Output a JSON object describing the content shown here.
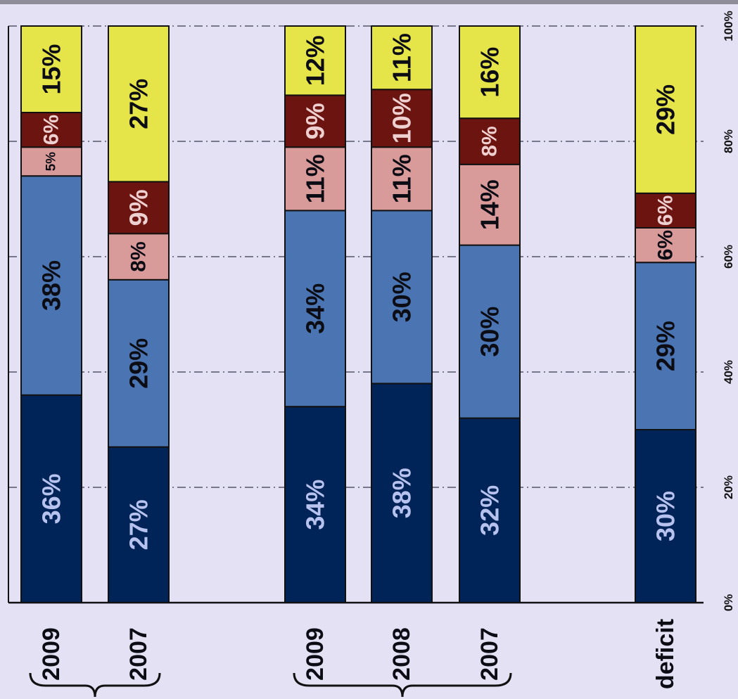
{
  "chart_data": {
    "type": "bar",
    "orientation": "horizontal-stacked",
    "value_axis": {
      "range": [
        0,
        100
      ],
      "ticks": [
        "0%",
        "20%",
        "40%",
        "60%",
        "80%",
        "100%"
      ],
      "grid": true
    },
    "categories": [
      "2009",
      "2007",
      "2009",
      "2008",
      "2007",
      "deficit"
    ],
    "category_groups": [
      {
        "members": [
          0,
          1
        ]
      },
      {
        "members": [
          2,
          3,
          4
        ]
      },
      {
        "members": [
          5
        ]
      }
    ],
    "series": [
      {
        "color": "#002457",
        "label_color": "#b7c3ee",
        "values": [
          36,
          27,
          34,
          38,
          32,
          30
        ]
      },
      {
        "color": "#4b75b2",
        "label_color": "#0c0c14",
        "values": [
          38,
          29,
          34,
          30,
          30,
          29
        ]
      },
      {
        "color": "#d99a9a",
        "label_color": "#0c0c14",
        "values": [
          5,
          8,
          11,
          11,
          14,
          6
        ]
      },
      {
        "color": "#6b1410",
        "label_color": "#efd0d0",
        "values": [
          6,
          9,
          9,
          10,
          8,
          6
        ]
      },
      {
        "color": "#e5e449",
        "label_color": "#0c0c14",
        "values": [
          15,
          27,
          12,
          11,
          16,
          29
        ]
      }
    ],
    "data_labels": [
      [
        "36%",
        "27%",
        "34%",
        "38%",
        "32%",
        "30%"
      ],
      [
        "38%",
        "29%",
        "34%",
        "30%",
        "30%",
        "29%"
      ],
      [
        "5%",
        "8%",
        "11%",
        "11%",
        "14%",
        "6%"
      ],
      [
        "6%",
        "9%",
        "9%",
        "10%",
        "8%",
        "6%"
      ],
      [
        "15%",
        "27%",
        "12%",
        "11%",
        "16%",
        "29%"
      ]
    ]
  }
}
